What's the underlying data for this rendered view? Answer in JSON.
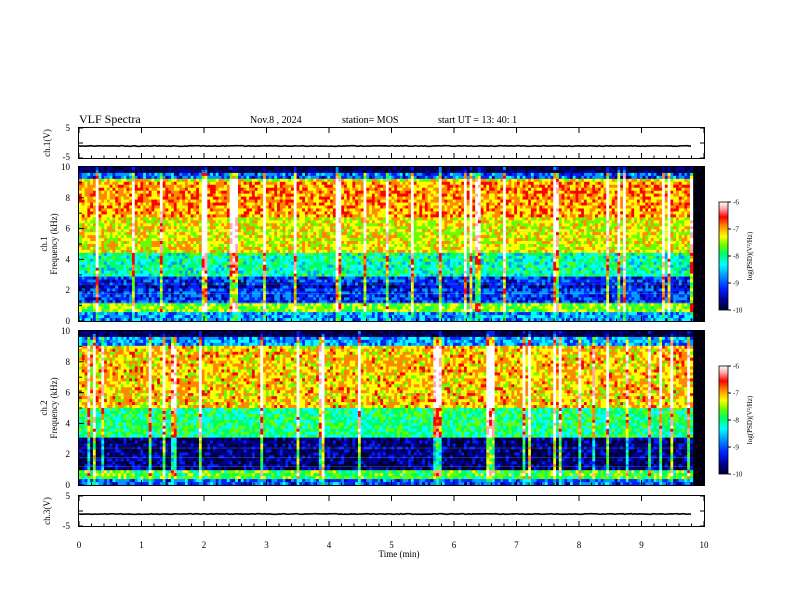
{
  "header": {
    "title": "VLF Spectra",
    "date": "Nov.8 , 2024",
    "station": "station= MOS",
    "start_ut": "start UT = 13: 40: 1"
  },
  "chart_data": [
    {
      "type": "line",
      "name": "ch1-voltage",
      "ylabel": "ch.1(V)",
      "ylim": [
        -5,
        5
      ],
      "yticks": [
        "5",
        "-5"
      ],
      "values_summary": "near-constant trace at about -1 V across the record"
    },
    {
      "type": "heatmap",
      "name": "ch1-spectrogram",
      "ylabel_line1": "ch.1",
      "ylabel_line2": "Frequency (kHz)",
      "ylim": [
        0,
        10
      ],
      "yticks": [
        "0",
        "2",
        "4",
        "6",
        "8",
        "10"
      ],
      "colorbar": {
        "label": "log(PSD)(V²/Hz)",
        "range": [
          -10,
          -6
        ],
        "ticks": [
          "-6",
          "-7",
          "-8",
          "-9",
          "-10"
        ]
      },
      "bands_summary": "most intense activity 4-9 kHz with vertical impulsive streaks; quiet dark bands near 1.5-2.5 kHz and above 9.5 kHz"
    },
    {
      "type": "heatmap",
      "name": "ch2-spectrogram",
      "ylabel_line1": "ch.2",
      "ylabel_line2": "Frequency (kHz)",
      "ylim": [
        0,
        10
      ],
      "yticks": [
        "0",
        "2",
        "4",
        "6",
        "8",
        "10"
      ],
      "colorbar": {
        "label": "log(PSD)(V²/Hz)",
        "range": [
          -10,
          -6
        ],
        "ticks": [
          "-6",
          "-7",
          "-8",
          "-9",
          "-10"
        ]
      },
      "bands_summary": "intense activity 5-9 kHz; dark quiet band 1-2.5 kHz and above 9.5 kHz"
    },
    {
      "type": "line",
      "name": "ch3-voltage",
      "ylabel": "ch.3(V)",
      "ylim": [
        -5,
        5
      ],
      "yticks": [
        "5",
        "-5"
      ],
      "values_summary": "near-constant trace at about -1 V across the record"
    }
  ],
  "xaxis": {
    "label": "Time (min)",
    "range": [
      0,
      10
    ],
    "ticks": [
      "0",
      "1",
      "2",
      "3",
      "4",
      "5",
      "6",
      "7",
      "8",
      "9",
      "10"
    ],
    "data_end": 9.82
  },
  "colormap": [
    "#000033",
    "#000099",
    "#0022ff",
    "#0099ff",
    "#00ffff",
    "#00ff66",
    "#66ff00",
    "#ffff00",
    "#ff8800",
    "#ff0000",
    "#ffaaaa",
    "#ffffff"
  ]
}
